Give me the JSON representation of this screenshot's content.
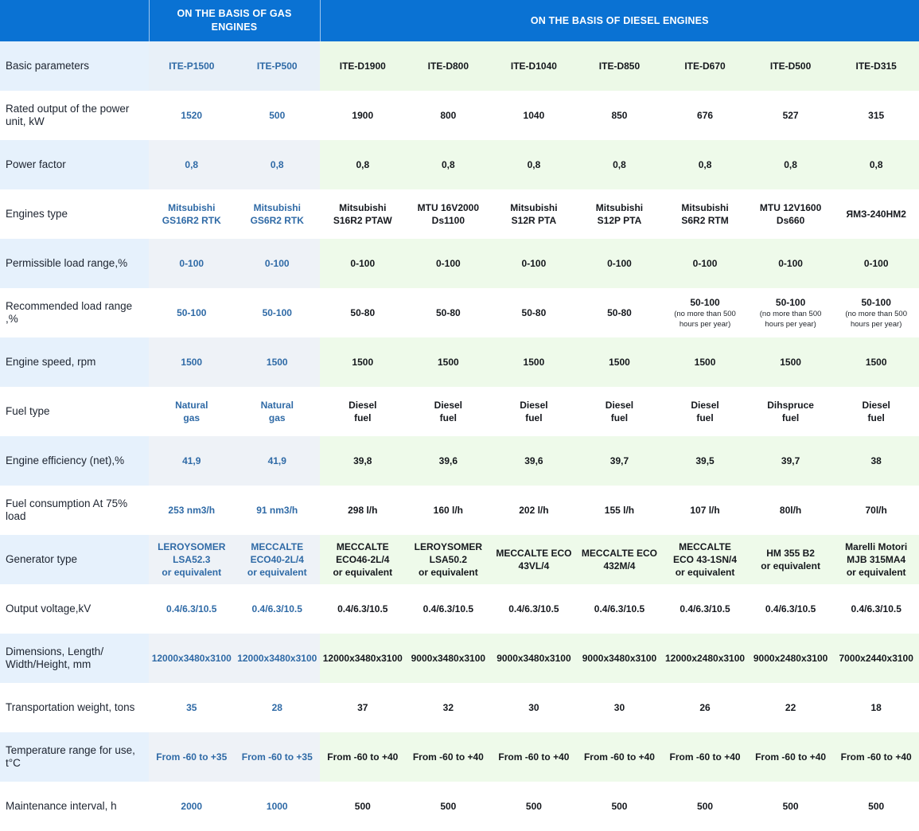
{
  "header": {
    "gas_group": "ON THE BASIS OF GAS ENGINES",
    "diesel_group": "ON THE BASIS OF DIESEL ENGINES"
  },
  "rows": [
    {
      "label": "Basic parameters",
      "values": [
        [
          "ITE-P1500"
        ],
        [
          "ITE-P500"
        ],
        [
          "ITE-D1900"
        ],
        [
          "ITE-D800"
        ],
        [
          "ITE-D1040"
        ],
        [
          "ITE-D850"
        ],
        [
          "ITE-D670"
        ],
        [
          "ITE-D500"
        ],
        [
          "ITE-D315"
        ]
      ]
    },
    {
      "label": "Rated output of the power unit, kW",
      "values": [
        [
          "1520"
        ],
        [
          "500"
        ],
        [
          "1900"
        ],
        [
          "800"
        ],
        [
          "1040"
        ],
        [
          "850"
        ],
        [
          "676"
        ],
        [
          "527"
        ],
        [
          "315"
        ]
      ]
    },
    {
      "label": "Power factor",
      "values": [
        [
          "0,8"
        ],
        [
          "0,8"
        ],
        [
          "0,8"
        ],
        [
          "0,8"
        ],
        [
          "0,8"
        ],
        [
          "0,8"
        ],
        [
          "0,8"
        ],
        [
          "0,8"
        ],
        [
          "0,8"
        ]
      ]
    },
    {
      "label": "Engines type",
      "values": [
        [
          "Mitsubishi",
          "GS16R2 RTK"
        ],
        [
          "Mitsubishi",
          "GS6R2 RTK"
        ],
        [
          "Mitsubishi",
          "S16R2 PTAW"
        ],
        [
          "MTU 16V2000",
          "Ds1100"
        ],
        [
          "Mitsubishi",
          "S12R PTA"
        ],
        [
          "Mitsubishi",
          "S12P PTA"
        ],
        [
          "Mitsubishi",
          "S6R2 RTM"
        ],
        [
          "MTU 12V1600",
          "Ds660"
        ],
        [
          "ЯМЗ-240НМ2"
        ]
      ]
    },
    {
      "label": "Permissible load range,%",
      "values": [
        [
          "0-100"
        ],
        [
          "0-100"
        ],
        [
          "0-100"
        ],
        [
          "0-100"
        ],
        [
          "0-100"
        ],
        [
          "0-100"
        ],
        [
          "0-100"
        ],
        [
          "0-100"
        ],
        [
          "0-100"
        ]
      ]
    },
    {
      "label": "Recommended load range ,%",
      "values": [
        [
          "50-100"
        ],
        [
          "50-100"
        ],
        [
          "50-80"
        ],
        [
          "50-80"
        ],
        [
          "50-80"
        ],
        [
          "50-80"
        ],
        [
          "50-100"
        ],
        [
          "50-100"
        ],
        [
          "50-100"
        ]
      ],
      "notes": [
        "",
        "",
        "",
        "",
        "",
        "",
        "(no more than 500 hours per year)",
        "(no more than 500 hours per year)",
        "(no more than 500 hours per year)"
      ]
    },
    {
      "label": "Engine speed, rpm",
      "values": [
        [
          "1500"
        ],
        [
          "1500"
        ],
        [
          "1500"
        ],
        [
          "1500"
        ],
        [
          "1500"
        ],
        [
          "1500"
        ],
        [
          "1500"
        ],
        [
          "1500"
        ],
        [
          "1500"
        ]
      ]
    },
    {
      "label": "Fuel type",
      "values": [
        [
          "Natural",
          "gas"
        ],
        [
          "Natural",
          "gas"
        ],
        [
          "Diesel",
          "fuel"
        ],
        [
          "Diesel",
          "fuel"
        ],
        [
          "Diesel",
          "fuel"
        ],
        [
          "Diesel",
          "fuel"
        ],
        [
          "Diesel",
          "fuel"
        ],
        [
          "Dihspruce",
          "fuel"
        ],
        [
          "Diesel",
          "fuel"
        ]
      ]
    },
    {
      "label": "Engine efficiency (net),%",
      "values": [
        [
          "41,9"
        ],
        [
          "41,9"
        ],
        [
          "39,8"
        ],
        [
          "39,6"
        ],
        [
          "39,6"
        ],
        [
          "39,7"
        ],
        [
          "39,5"
        ],
        [
          "39,7"
        ],
        [
          "38"
        ]
      ]
    },
    {
      "label": "Fuel consumption At 75% load",
      "values": [
        [
          "253 nm3/h"
        ],
        [
          "91 nm3/h"
        ],
        [
          "298 l/h"
        ],
        [
          "160 l/h"
        ],
        [
          "202 l/h"
        ],
        [
          "155 l/h"
        ],
        [
          "107 l/h"
        ],
        [
          "80l/h"
        ],
        [
          "70l/h"
        ]
      ]
    },
    {
      "label": "Generator type",
      "values": [
        [
          "LEROYSOMER",
          "LSA52.3",
          "or equivalent"
        ],
        [
          "MECCALTE",
          "ECO40-2L/4",
          "or equivalent"
        ],
        [
          "MECCALTE",
          "ECO46-2L/4",
          "or equivalent"
        ],
        [
          "LEROYSOMER",
          "LSA50.2",
          "or equivalent"
        ],
        [
          "MECCALTE ECO",
          "43VL/4"
        ],
        [
          "MECCALTE ECO",
          "432M/4"
        ],
        [
          "MECCALTE",
          "ECO 43-1SN/4",
          "or equivalent"
        ],
        [
          "HM 355 B2",
          "or equivalent"
        ],
        [
          "Marelli Motori",
          "MJB 315MA4",
          "or equivalent"
        ]
      ]
    },
    {
      "label": "Output voltage,kV",
      "values": [
        [
          "0.4/6.3/10.5"
        ],
        [
          "0.4/6.3/10.5"
        ],
        [
          "0.4/6.3/10.5"
        ],
        [
          "0.4/6.3/10.5"
        ],
        [
          "0.4/6.3/10.5"
        ],
        [
          "0.4/6.3/10.5"
        ],
        [
          "0.4/6.3/10.5"
        ],
        [
          "0.4/6.3/10.5"
        ],
        [
          "0.4/6.3/10.5"
        ]
      ]
    },
    {
      "label": "Dimensions, Length/ Width/Height, mm",
      "values": [
        [
          "12000x3480x3100"
        ],
        [
          "12000x3480x3100"
        ],
        [
          "12000x3480x3100"
        ],
        [
          "9000x3480x3100"
        ],
        [
          "9000x3480x3100"
        ],
        [
          "9000x3480x3100"
        ],
        [
          "12000x2480x3100"
        ],
        [
          "9000x2480x3100"
        ],
        [
          "7000x2440x3100"
        ]
      ]
    },
    {
      "label": "Transportation weight, tons",
      "values": [
        [
          "35"
        ],
        [
          "28"
        ],
        [
          "37"
        ],
        [
          "32"
        ],
        [
          "30"
        ],
        [
          "30"
        ],
        [
          "26"
        ],
        [
          "22"
        ],
        [
          "18"
        ]
      ]
    },
    {
      "label": "Temperature range for use, t°C",
      "values": [
        [
          "From -60 to +35"
        ],
        [
          "From -60 to +35"
        ],
        [
          "From -60 to +40"
        ],
        [
          "From -60 to +40"
        ],
        [
          "From -60 to +40"
        ],
        [
          "From -60 to +40"
        ],
        [
          "From -60 to +40"
        ],
        [
          "From -60 to +40"
        ],
        [
          "From -60 to +40"
        ]
      ]
    },
    {
      "label": "Maintenance interval, h",
      "values": [
        [
          "2000"
        ],
        [
          "1000"
        ],
        [
          "500"
        ],
        [
          "500"
        ],
        [
          "500"
        ],
        [
          "500"
        ],
        [
          "500"
        ],
        [
          "500"
        ],
        [
          "500"
        ]
      ]
    }
  ]
}
